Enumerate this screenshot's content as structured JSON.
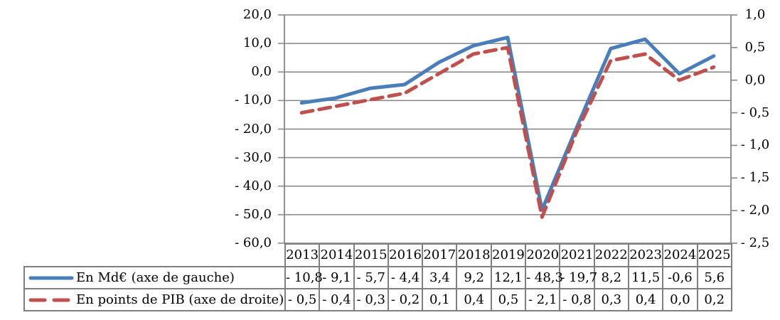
{
  "chart_data": {
    "type": "line",
    "categories": [
      "2013",
      "2014",
      "2015",
      "2016",
      "2017",
      "2018",
      "2019",
      "2020",
      "2021",
      "2022",
      "2023",
      "2024",
      "2025"
    ],
    "series": [
      {
        "name": "En Md€ (axe de gauche)",
        "axis": "left",
        "line_style": "solid",
        "color": "#4a7ebb",
        "values": [
          -10.8,
          -9.1,
          -5.7,
          -4.4,
          3.4,
          9.2,
          12.1,
          -48.3,
          -19.7,
          8.2,
          11.5,
          -0.6,
          5.6
        ],
        "display_values": [
          "- 10,8",
          "- 9,1",
          "- 5,7",
          "- 4,4",
          "3,4",
          "9,2",
          "12,1",
          "- 48,3",
          "- 19,7",
          "8,2",
          "11,5",
          "-0,6",
          "5,6"
        ]
      },
      {
        "name": "En points de PIB (axe de droite)",
        "axis": "right",
        "line_style": "dashed",
        "color": "#c0504d",
        "values": [
          -0.5,
          -0.4,
          -0.3,
          -0.2,
          0.1,
          0.4,
          0.5,
          -2.1,
          -0.8,
          0.3,
          0.4,
          0.0,
          0.2
        ],
        "display_values": [
          "- 0,5",
          "- 0,4",
          "- 0,3",
          "- 0,2",
          "0,1",
          "0,4",
          "0,5",
          "- 2,1",
          "- 0,8",
          "0,3",
          "0,4",
          "0,0",
          "0,2"
        ]
      }
    ],
    "left_axis": {
      "min": -60,
      "max": 20,
      "step": 10,
      "tick_labels": [
        "20,0",
        "10,0",
        "0,0",
        "- 10,0",
        "- 20,0",
        "- 30,0",
        "- 40,0",
        "- 50,0",
        "- 60,0"
      ]
    },
    "right_axis": {
      "min": -2.5,
      "max": 1.0,
      "step": 0.5,
      "tick_labels": [
        "1,0",
        "0,5",
        "0,0",
        "- 0,5",
        "- 1,0",
        "- 1,5",
        "- 2,0",
        "- 2,5"
      ]
    },
    "grid": true,
    "legend_position": "table-left"
  },
  "colors": {
    "grid": "#848484",
    "axis": "#848484",
    "table_border": "#7f7f7f",
    "text": "#000000",
    "background": "#ffffff"
  }
}
